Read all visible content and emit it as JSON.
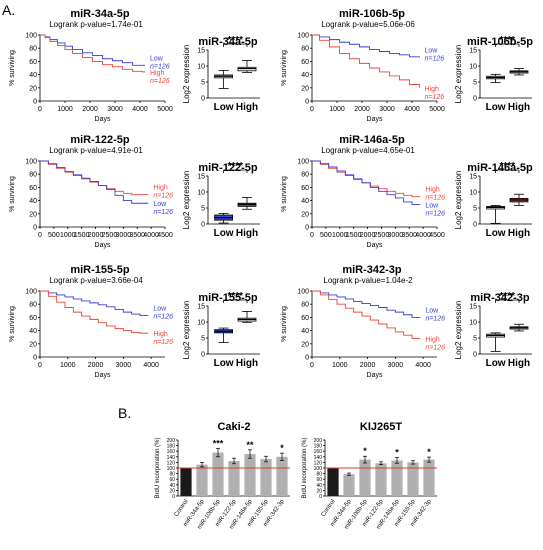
{
  "figure": {
    "panel_a_label": "A.",
    "panel_b_label": "B."
  },
  "chart_data": [
    {
      "type": "line",
      "panel": "km",
      "title": "miR-34a-5p",
      "subtitle": "Logrank p-value=1.74e-01",
      "xlabel": "Days",
      "ylabel": "% surviving",
      "xlim": [
        0,
        5000
      ],
      "ylim": [
        0,
        100
      ],
      "xticks": [
        0,
        1000,
        2000,
        3000,
        4000,
        5000
      ],
      "yticks": [
        0,
        20,
        40,
        60,
        80,
        100
      ],
      "series": [
        {
          "name": "Low",
          "n_label": "n=126",
          "color": "#3b3bd1",
          "x": [
            0,
            200,
            400,
            700,
            1000,
            1300,
            1700,
            2100,
            2500,
            2900,
            3300,
            3700,
            4100,
            4200
          ],
          "y": [
            100,
            97,
            93,
            88,
            83,
            78,
            73,
            69,
            64,
            61,
            58,
            54,
            54,
            54
          ]
        },
        {
          "name": "High",
          "n_label": "n=126",
          "color": "#e8463c",
          "x": [
            0,
            200,
            400,
            700,
            1000,
            1300,
            1700,
            2100,
            2500,
            2900,
            3300,
            3700,
            4100,
            4200
          ],
          "y": [
            100,
            96,
            90,
            84,
            78,
            72,
            66,
            60,
            55,
            52,
            48,
            45,
            44,
            44
          ]
        }
      ]
    },
    {
      "type": "line",
      "panel": "km",
      "title": "miR-106b-5p",
      "subtitle": "Logrank p-value=5.06e-06",
      "xlabel": "Days",
      "ylabel": "% surviving",
      "xlim": [
        0,
        5000
      ],
      "ylim": [
        0,
        100
      ],
      "xticks": [
        0,
        1000,
        2000,
        3000,
        4000,
        5000
      ],
      "yticks": [
        0,
        20,
        40,
        60,
        80,
        100
      ],
      "series": [
        {
          "name": "Low",
          "n_label": "n=126",
          "color": "#3b3bd1",
          "x": [
            0,
            300,
            700,
            1100,
            1500,
            1900,
            2300,
            2700,
            3100,
            3500,
            3900,
            4300
          ],
          "y": [
            100,
            97,
            93,
            89,
            86,
            82,
            78,
            75,
            72,
            70,
            67,
            66
          ]
        },
        {
          "name": "High",
          "n_label": "n=126",
          "color": "#e8463c",
          "x": [
            0,
            300,
            700,
            1100,
            1500,
            1900,
            2300,
            2700,
            3100,
            3500,
            3900,
            4300
          ],
          "y": [
            100,
            92,
            82,
            72,
            64,
            57,
            50,
            44,
            38,
            32,
            25,
            20
          ]
        }
      ]
    },
    {
      "type": "line",
      "panel": "km",
      "title": "miR-122-5p",
      "subtitle": "Logrank p-value=4.91e-01",
      "xlabel": "Days",
      "ylabel": "% surviving",
      "xlim": [
        0,
        4500
      ],
      "ylim": [
        0,
        100
      ],
      "xticks": [
        0,
        500,
        1000,
        1500,
        2000,
        2500,
        3000,
        3500,
        4000,
        4500
      ],
      "yticks": [
        0,
        20,
        40,
        60,
        80,
        100
      ],
      "series": [
        {
          "name": "High",
          "n_label": "n=126",
          "color": "#e8463c",
          "x": [
            0,
            300,
            600,
            900,
            1200,
            1500,
            1800,
            2100,
            2400,
            2700,
            3000,
            3300,
            3600,
            3900
          ],
          "y": [
            100,
            95,
            89,
            83,
            78,
            73,
            68,
            63,
            58,
            54,
            51,
            49,
            49,
            49
          ]
        },
        {
          "name": "Low",
          "n_label": "n=126",
          "color": "#3b3bd1",
          "x": [
            0,
            300,
            600,
            900,
            1200,
            1500,
            1800,
            2100,
            2400,
            2700,
            3000,
            3300,
            3600,
            3900
          ],
          "y": [
            100,
            96,
            90,
            84,
            79,
            74,
            69,
            63,
            57,
            48,
            40,
            36,
            36,
            36
          ]
        }
      ]
    },
    {
      "type": "line",
      "panel": "km",
      "title": "miR-146a-5p",
      "subtitle": "Logrank p-value=4.65e-01",
      "xlabel": "Days",
      "ylabel": "% surviving",
      "xlim": [
        0,
        4500
      ],
      "ylim": [
        0,
        100
      ],
      "xticks": [
        0,
        500,
        1000,
        1500,
        2000,
        2500,
        3000,
        3500,
        4000,
        4500
      ],
      "yticks": [
        0,
        20,
        40,
        60,
        80,
        100
      ],
      "series": [
        {
          "name": "High",
          "n_label": "n=126",
          "color": "#e8463c",
          "x": [
            0,
            300,
            600,
            900,
            1200,
            1500,
            1800,
            2100,
            2400,
            2700,
            3000,
            3300,
            3600,
            3900
          ],
          "y": [
            100,
            95,
            89,
            83,
            78,
            72,
            67,
            62,
            58,
            54,
            51,
            48,
            46,
            46
          ]
        },
        {
          "name": "Low",
          "n_label": "n=126",
          "color": "#3b3bd1",
          "x": [
            0,
            300,
            600,
            900,
            1200,
            1500,
            1800,
            2100,
            2400,
            2700,
            3000,
            3300,
            3600,
            3900
          ],
          "y": [
            100,
            96,
            91,
            85,
            79,
            73,
            67,
            60,
            54,
            49,
            44,
            38,
            34,
            34
          ]
        }
      ]
    },
    {
      "type": "line",
      "panel": "km",
      "title": "miR-155-5p",
      "subtitle": "Logrank p-value=3.66e-04",
      "xlabel": "Days",
      "ylabel": "% surviving",
      "xlim": [
        0,
        4500
      ],
      "ylim": [
        0,
        100
      ],
      "xticks": [
        0,
        1000,
        2000,
        3000,
        4000
      ],
      "yticks": [
        0,
        20,
        40,
        60,
        80,
        100
      ],
      "series": [
        {
          "name": "Low",
          "n_label": "n=126",
          "color": "#3b3bd1",
          "x": [
            0,
            300,
            600,
            900,
            1200,
            1500,
            1800,
            2100,
            2400,
            2700,
            3000,
            3300,
            3600,
            3900
          ],
          "y": [
            100,
            97,
            94,
            91,
            88,
            85,
            82,
            79,
            76,
            72,
            68,
            65,
            63,
            63
          ]
        },
        {
          "name": "High",
          "n_label": "n=126",
          "color": "#e8463c",
          "x": [
            0,
            300,
            600,
            900,
            1200,
            1500,
            1800,
            2100,
            2400,
            2700,
            3000,
            3300,
            3600,
            3900
          ],
          "y": [
            100,
            92,
            83,
            75,
            68,
            62,
            57,
            52,
            47,
            43,
            40,
            37,
            36,
            36
          ]
        }
      ]
    },
    {
      "type": "line",
      "panel": "km",
      "title": "miR-342-3p",
      "subtitle": "Logrank p-value=1.04e-2",
      "xlabel": "Days",
      "ylabel": "% surviving",
      "xlim": [
        0,
        4500
      ],
      "ylim": [
        0,
        100
      ],
      "xticks": [
        0,
        1000,
        2000,
        3000,
        4000
      ],
      "yticks": [
        0,
        20,
        40,
        60,
        80,
        100
      ],
      "series": [
        {
          "name": "Low",
          "n_label": "n=126",
          "color": "#3b3bd1",
          "x": [
            0,
            300,
            600,
            900,
            1200,
            1500,
            1800,
            2100,
            2400,
            2700,
            3000,
            3300,
            3600,
            3900
          ],
          "y": [
            100,
            97,
            94,
            91,
            88,
            84,
            81,
            78,
            75,
            71,
            68,
            64,
            60,
            60
          ]
        },
        {
          "name": "High",
          "n_label": "n=126",
          "color": "#e8463c",
          "x": [
            0,
            300,
            600,
            900,
            1200,
            1500,
            1800,
            2100,
            2400,
            2700,
            3000,
            3300,
            3600,
            3900
          ],
          "y": [
            100,
            94,
            87,
            80,
            74,
            68,
            62,
            56,
            50,
            44,
            38,
            33,
            28,
            28
          ]
        }
      ]
    },
    {
      "type": "box",
      "panel": "boxplot",
      "title": "miR-34a-5p",
      "ylabel": "Log2 expression",
      "categories": [
        "Low",
        "High"
      ],
      "ylim": [
        0,
        15
      ],
      "yticks": [
        0,
        5,
        10,
        15
      ],
      "significance": "****",
      "box_colors": [
        "#ffffff",
        "#ffffff"
      ],
      "boxes": [
        {
          "min": 3,
          "q1": 6.3,
          "median": 6.8,
          "q3": 7.2,
          "max": 8.6
        },
        {
          "min": 8,
          "q1": 8.5,
          "median": 9.2,
          "q3": 9.6,
          "max": 11.7
        }
      ]
    },
    {
      "type": "box",
      "panel": "boxplot",
      "title": "miR-106b-5p",
      "ylabel": "Log2 expression",
      "categories": [
        "Low",
        "High"
      ],
      "ylim": [
        0,
        15
      ],
      "yticks": [
        0,
        5,
        10,
        15
      ],
      "significance": "****",
      "box_colors": [
        "#ffffff",
        "#ffffff"
      ],
      "boxes": [
        {
          "min": 4.8,
          "q1": 6.0,
          "median": 6.4,
          "q3": 6.8,
          "max": 7.4
        },
        {
          "min": 7.2,
          "q1": 7.8,
          "median": 8.2,
          "q3": 8.5,
          "max": 9.2
        }
      ]
    },
    {
      "type": "box",
      "panel": "boxplot",
      "title": "miR-122-5p",
      "ylabel": "Log2 expression",
      "categories": [
        "Low",
        "High"
      ],
      "ylim": [
        0,
        15
      ],
      "yticks": [
        0,
        5,
        10,
        15
      ],
      "significance": "****",
      "box_colors": [
        "#3a46d6",
        "#d63a3a"
      ],
      "boxes": [
        {
          "min": 0.3,
          "q1": 1.2,
          "median": 2.0,
          "q3": 2.8,
          "max": 3.3
        },
        {
          "min": 4.6,
          "q1": 5.5,
          "median": 6.1,
          "q3": 6.5,
          "max": 8.3
        }
      ]
    },
    {
      "type": "box",
      "panel": "boxplot",
      "title": "miR-146a-5p",
      "ylabel": "Log2 expression",
      "categories": [
        "Low",
        "High"
      ],
      "ylim": [
        0,
        15
      ],
      "yticks": [
        0,
        5,
        10,
        15
      ],
      "significance": "****",
      "box_colors": [
        "#ffffff",
        "#d63a3a"
      ],
      "boxes": [
        {
          "min": 0.2,
          "q1": 4.7,
          "median": 5.2,
          "q3": 5.5,
          "max": 5.8
        },
        {
          "min": 5.8,
          "q1": 6.9,
          "median": 7.5,
          "q3": 8.0,
          "max": 9.3
        }
      ]
    },
    {
      "type": "box",
      "panel": "boxplot",
      "title": "miR-155-5p",
      "ylabel": "Log2 expression",
      "categories": [
        "Low",
        "High"
      ],
      "ylim": [
        0,
        15
      ],
      "yticks": [
        0,
        5,
        10,
        15
      ],
      "significance": "****",
      "box_colors": [
        "#3a46d6",
        "#ffffff"
      ],
      "boxes": [
        {
          "min": 3.6,
          "q1": 6.6,
          "median": 7.1,
          "q3": 7.6,
          "max": 8.1
        },
        {
          "min": 9.9,
          "q1": 10.3,
          "median": 10.8,
          "q3": 11.2,
          "max": 13.3
        }
      ]
    },
    {
      "type": "box",
      "panel": "boxplot",
      "title": "miR-342-3p",
      "ylabel": "Log2 expression",
      "categories": [
        "Low",
        "High"
      ],
      "ylim": [
        0,
        15
      ],
      "yticks": [
        0,
        5,
        10,
        15
      ],
      "significance": "****",
      "box_colors": [
        "#ffffff",
        "#ffffff"
      ],
      "boxes": [
        {
          "min": 0.8,
          "q1": 5.3,
          "median": 5.8,
          "q3": 6.2,
          "max": 6.6
        },
        {
          "min": 7.2,
          "q1": 7.8,
          "median": 8.2,
          "q3": 8.5,
          "max": 9.3
        }
      ]
    },
    {
      "type": "bar",
      "panel": "brdu",
      "title": "Caki-2",
      "ylabel": "BrdU incorporation (%)",
      "categories": [
        "Control",
        "miR-34a-5p",
        "miR-106b-5p",
        "miR-122-5p",
        "miR-146a-5p",
        "miR-155-5p",
        "miR-342-3p"
      ],
      "values": [
        100,
        112,
        155,
        125,
        150,
        132,
        140
      ],
      "errors": [
        0,
        8,
        15,
        10,
        15,
        10,
        13
      ],
      "significance": [
        "",
        "",
        "***",
        "",
        "**",
        "",
        "*"
      ],
      "ylim": [
        0,
        200
      ],
      "yticks": [
        0,
        20,
        40,
        60,
        80,
        100,
        120,
        140,
        160,
        180,
        200
      ],
      "bar_colors": [
        "#1a1a1a",
        "#b0b0b0",
        "#b0b0b0",
        "#b0b0b0",
        "#b0b0b0",
        "#b0b0b0",
        "#b0b0b0"
      ],
      "reference_line": 100,
      "reference_color": "#e53935"
    },
    {
      "type": "bar",
      "panel": "brdu",
      "title": "KIJ265T",
      "ylabel": "BrdU incorporation (%)",
      "categories": [
        "Control",
        "miR-34a-5p",
        "miR-106b-5p",
        "miR-122-5p",
        "miR-146a-5p",
        "miR-155-5p",
        "miR-342-3p"
      ],
      "values": [
        100,
        78,
        130,
        117,
        127,
        120,
        130
      ],
      "errors": [
        0,
        4,
        12,
        5,
        10,
        6,
        9
      ],
      "significance": [
        "",
        "",
        "*",
        "",
        "*",
        "",
        "*"
      ],
      "ylim": [
        0,
        200
      ],
      "yticks": [
        0,
        20,
        40,
        60,
        80,
        100,
        120,
        140,
        160,
        180,
        200
      ],
      "bar_colors": [
        "#1a1a1a",
        "#b0b0b0",
        "#b0b0b0",
        "#b0b0b0",
        "#b0b0b0",
        "#b0b0b0",
        "#b0b0b0"
      ],
      "reference_line": 100,
      "reference_color": "#e53935"
    }
  ]
}
